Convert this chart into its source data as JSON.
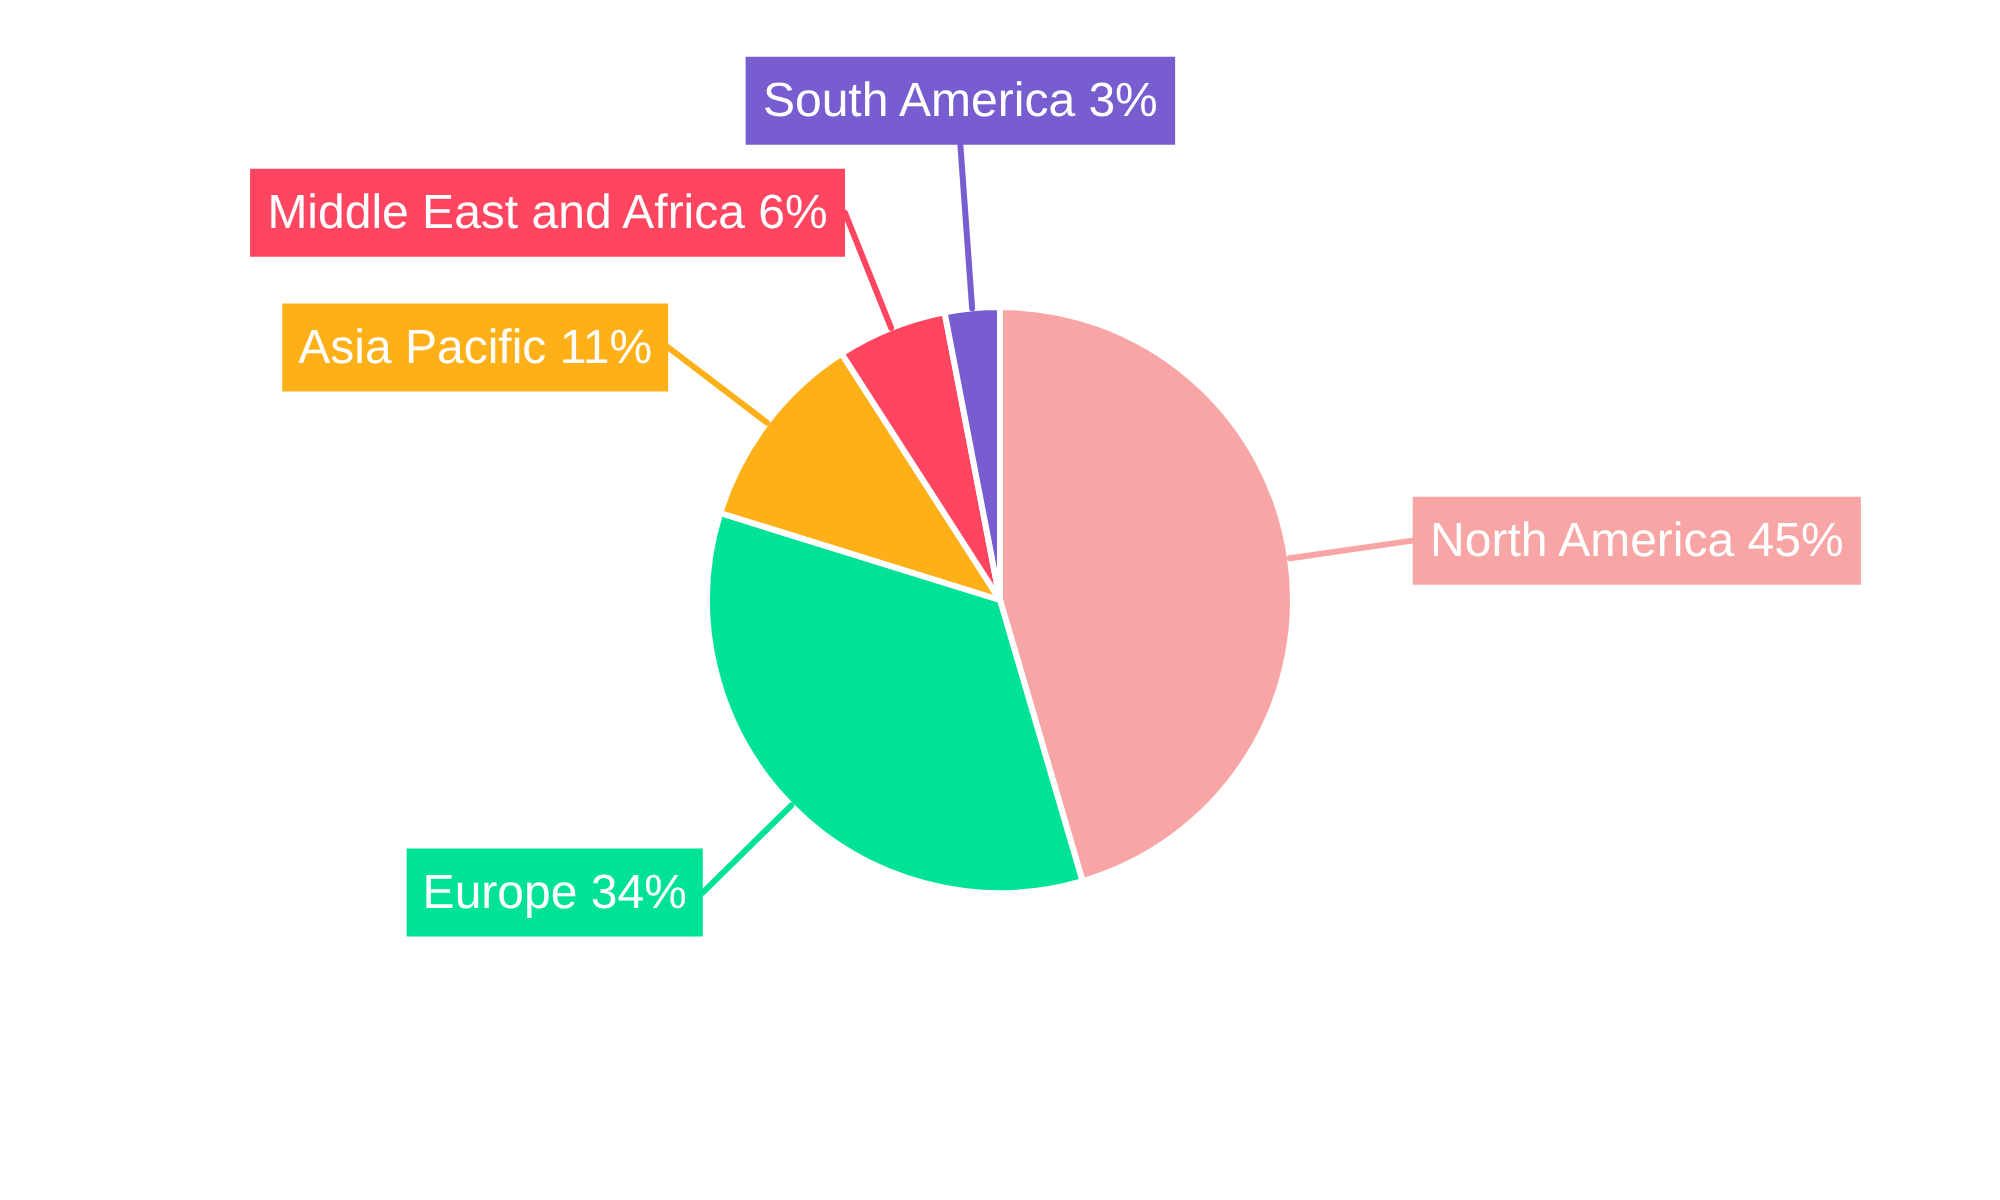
{
  "chart_data": {
    "type": "pie",
    "categories": [
      "North America",
      "Europe",
      "Asia Pacific",
      "Middle East and Africa",
      "South America"
    ],
    "values": [
      45,
      34,
      11,
      6,
      3
    ],
    "colors": [
      "#f8a5a5",
      "#00e396",
      "#feb019",
      "#ff4560",
      "#775dd0"
    ],
    "value_labels": [
      "45%",
      "34%",
      "11%",
      "6%",
      "3%"
    ]
  }
}
